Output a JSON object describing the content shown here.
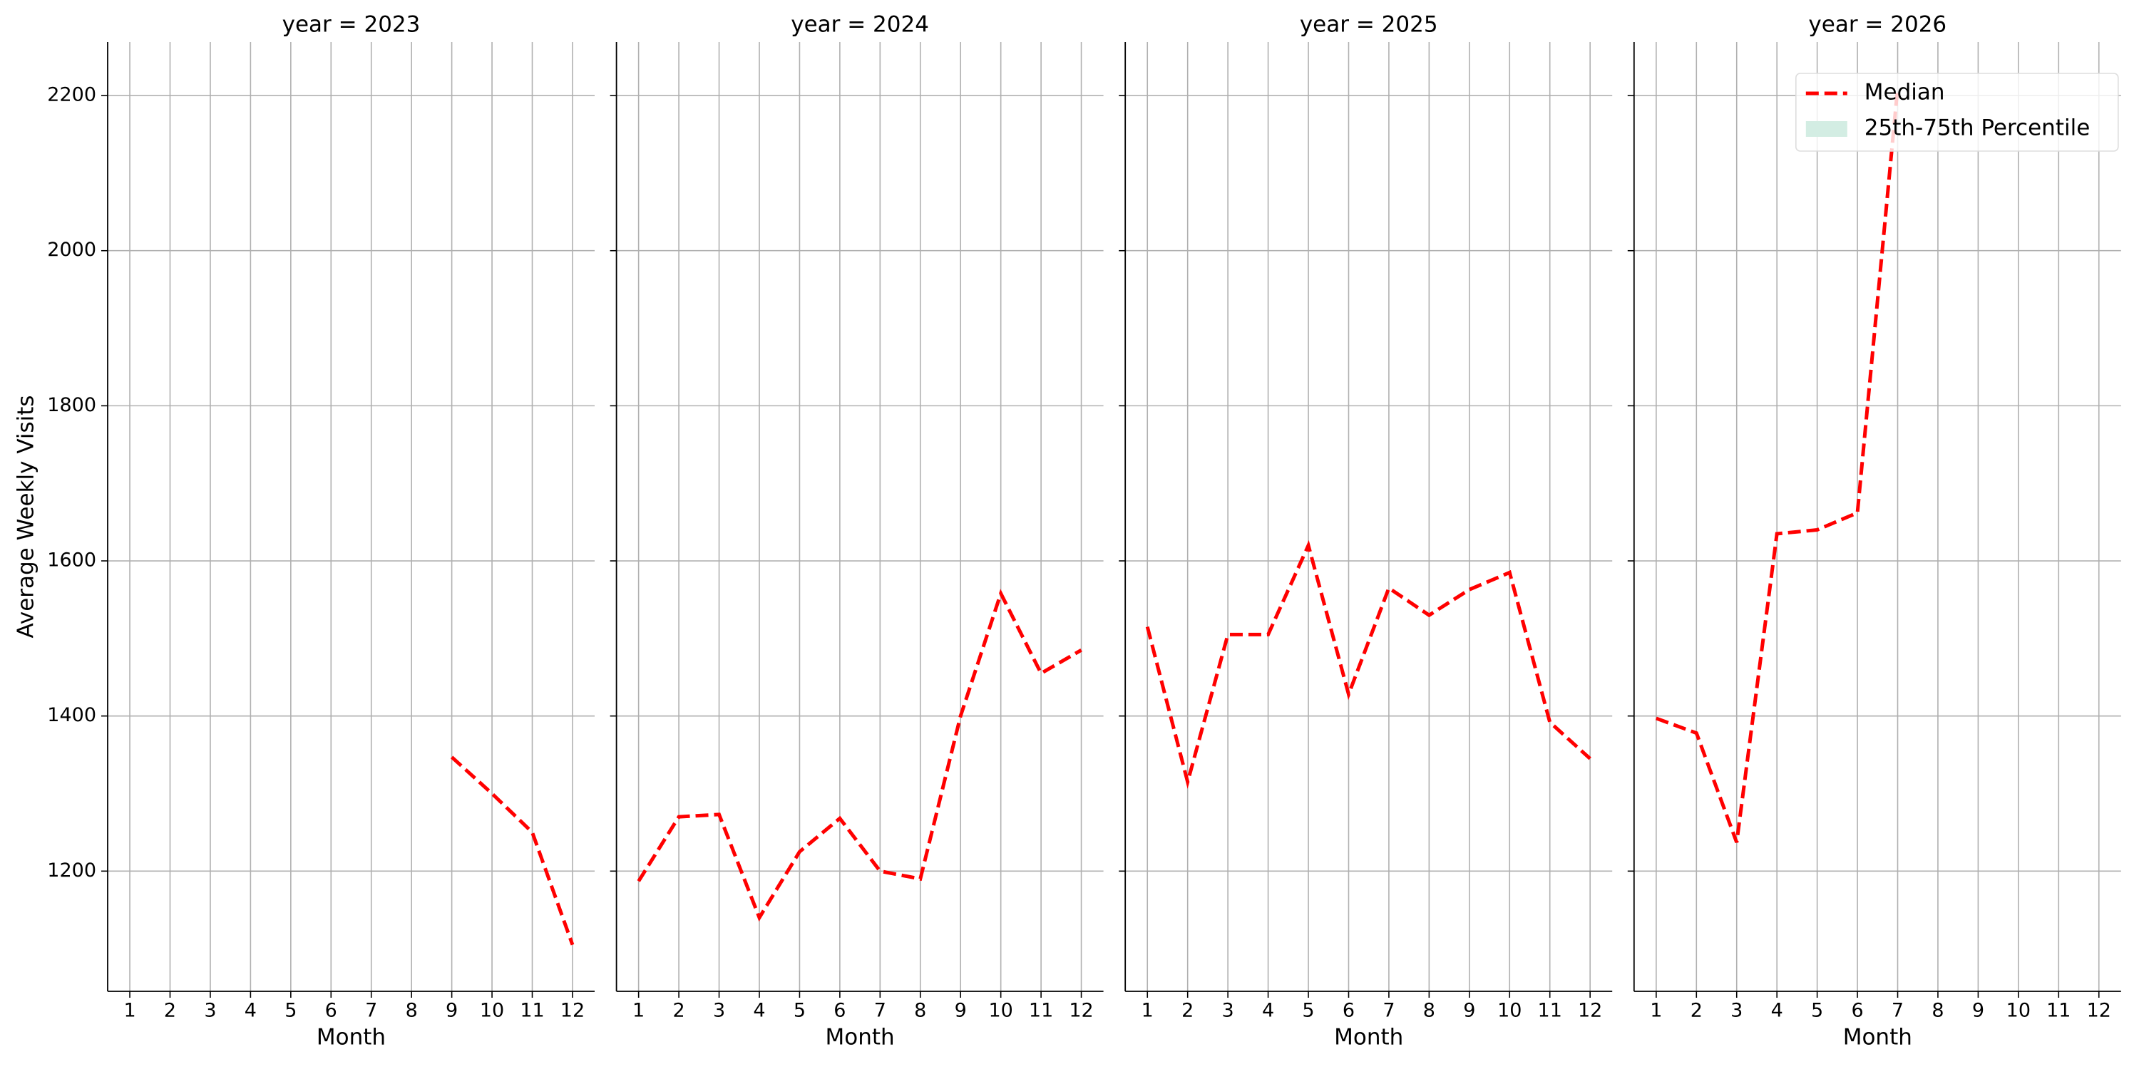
{
  "chart_data": {
    "type": "line",
    "ylabel": "Average Weekly Visits",
    "ylim": [
      1045,
      2269
    ],
    "yticks": [
      1200,
      1400,
      1600,
      1800,
      2000,
      2200
    ],
    "grid": true,
    "line_color": "#ff0000",
    "line_style": "dashed",
    "legend_loc": "upper right",
    "legend": [
      {
        "name": "Median"
      },
      {
        "name": "25th-75th Percentile",
        "color": "#d3ede3"
      }
    ],
    "panels": [
      {
        "title": "year = 2023",
        "xlabel": "Month",
        "x": [
          1,
          2,
          3,
          4,
          5,
          6,
          7,
          8,
          9,
          10,
          11,
          12
        ],
        "xlim": [
          0.45,
          12.55
        ],
        "xticks": [
          1,
          2,
          3,
          4,
          5,
          6,
          7,
          8,
          9,
          10,
          11,
          12
        ],
        "values": [
          null,
          null,
          null,
          null,
          null,
          null,
          null,
          null,
          1347,
          1300,
          1250,
          1105
        ]
      },
      {
        "title": "year = 2024",
        "xlabel": "Month",
        "x": [
          1,
          2,
          3,
          4,
          5,
          6,
          7,
          8,
          9,
          10,
          11,
          12
        ],
        "xlim": [
          0.45,
          12.55
        ],
        "xticks": [
          1,
          2,
          3,
          4,
          5,
          6,
          7,
          8,
          9,
          10,
          11,
          12
        ],
        "values": [
          1187,
          1270,
          1273,
          1140,
          1225,
          1268,
          1200,
          1190,
          1400,
          1558,
          1455,
          1485
        ]
      },
      {
        "title": "year = 2025",
        "xlabel": "Month",
        "x": [
          1,
          2,
          3,
          4,
          5,
          6,
          7,
          8,
          9,
          10,
          11,
          12
        ],
        "xlim": [
          0.45,
          12.55
        ],
        "xticks": [
          1,
          2,
          3,
          4,
          5,
          6,
          7,
          8,
          9,
          10,
          11,
          12
        ],
        "values": [
          1515,
          1315,
          1505,
          1505,
          1620,
          1428,
          1565,
          1530,
          1563,
          1585,
          1392,
          1345
        ]
      },
      {
        "title": "year = 2026",
        "xlabel": "Month",
        "x": [
          1,
          2,
          3,
          4,
          5,
          6,
          7,
          8,
          9,
          10,
          11,
          12
        ],
        "xlim": [
          0.45,
          12.55
        ],
        "xticks": [
          1,
          2,
          3,
          4,
          5,
          6,
          7,
          8,
          9,
          10,
          11,
          12
        ],
        "values": [
          1397,
          1378,
          1237,
          1635,
          1640,
          1662,
          2210,
          null,
          null,
          null,
          null,
          null
        ]
      }
    ]
  }
}
